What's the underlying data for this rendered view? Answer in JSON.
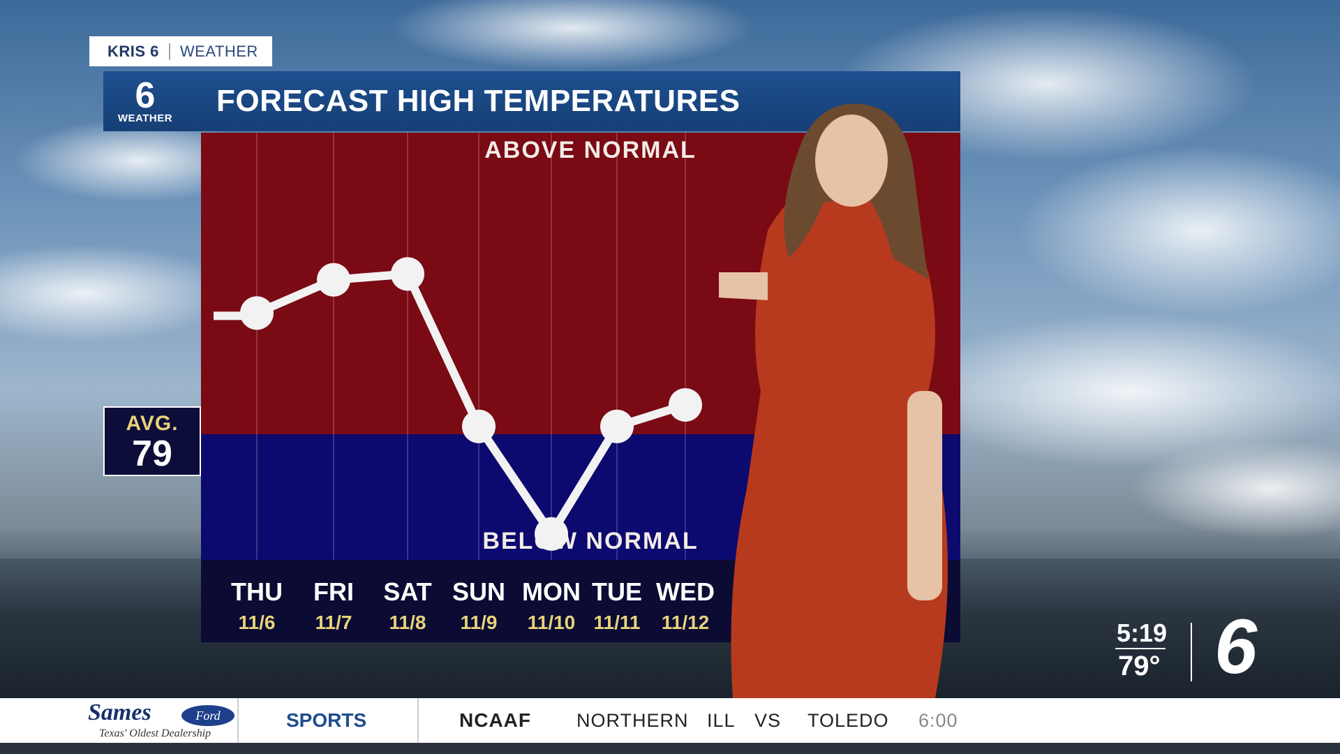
{
  "brand_tab": {
    "station": "KRIS 6",
    "section": "WEATHER"
  },
  "title_bar": {
    "logo_number": "6",
    "logo_caption": "WEATHER",
    "title": "FORECAST HIGH TEMPERATURES"
  },
  "avg": {
    "label": "AVG.",
    "value": "79"
  },
  "chart_data": {
    "type": "line",
    "top_label": "ABOVE NORMAL",
    "bottom_label": "BELOW NORMAL",
    "average": 79,
    "days": [
      "THU",
      "FRI",
      "SAT",
      "SUN",
      "MON",
      "TUE",
      "WED"
    ],
    "dates": [
      "11/6",
      "11/7",
      "11/8",
      "11/9",
      "11/10",
      "11/11",
      "11/12"
    ],
    "relative_levels": [
      0.62,
      0.79,
      0.82,
      0.04,
      -0.51,
      0.04,
      0.15
    ],
    "colors": {
      "above": "#7a0a14",
      "below": "#0c0a6e",
      "axis": "#0b0b33",
      "line": "#f2f2f2",
      "date": "#e8d27a"
    }
  },
  "bug": {
    "time": "5:19",
    "temp": "79°",
    "logo": "6"
  },
  "ticker": {
    "sponsor": "Sames",
    "sponsor_badge": "Ford",
    "sponsor_tagline": "Texas' Oldest Dealership",
    "section": "SPORTS",
    "league": "NCAAF",
    "items": [
      "NORTHERN",
      "ILL",
      "VS",
      "TOLEDO"
    ],
    "time": "6:00"
  }
}
